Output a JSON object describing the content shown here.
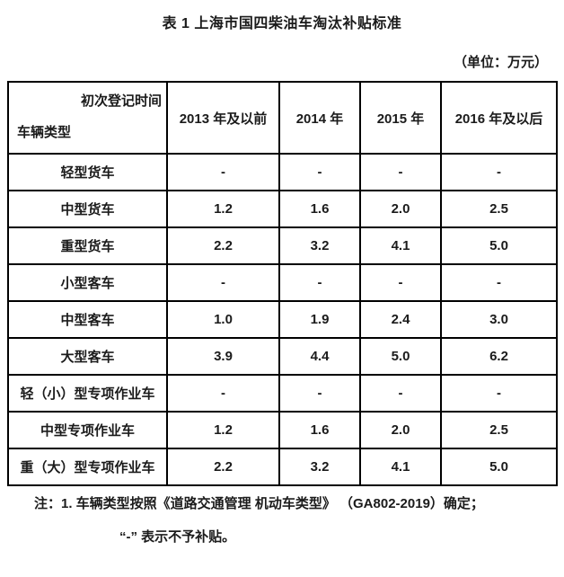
{
  "title": "表 1 上海市国四柴油车淘汰补贴标准",
  "unit_label": "（单位：万元）",
  "table": {
    "corner": {
      "top_right": "初次登记时间",
      "bottom_left": "车辆类型"
    },
    "columns": [
      "2013 年及以前",
      "2014 年",
      "2015 年",
      "2016 年及以后"
    ],
    "rows": [
      {
        "label": "轻型货车",
        "values": [
          "-",
          "-",
          "-",
          "-"
        ]
      },
      {
        "label": "中型货车",
        "values": [
          "1.2",
          "1.6",
          "2.0",
          "2.5"
        ]
      },
      {
        "label": "重型货车",
        "values": [
          "2.2",
          "3.2",
          "4.1",
          "5.0"
        ]
      },
      {
        "label": "小型客车",
        "values": [
          "-",
          "-",
          "-",
          "-"
        ]
      },
      {
        "label": "中型客车",
        "values": [
          "1.0",
          "1.9",
          "2.4",
          "3.0"
        ]
      },
      {
        "label": "大型客车",
        "values": [
          "3.9",
          "4.4",
          "5.0",
          "6.2"
        ]
      },
      {
        "label": "轻（小）型专项作业车",
        "values": [
          "-",
          "-",
          "-",
          "-"
        ]
      },
      {
        "label": "中型专项作业车",
        "values": [
          "1.2",
          "1.6",
          "2.0",
          "2.5"
        ]
      },
      {
        "label": "重（大）型专项作业车",
        "values": [
          "2.2",
          "3.2",
          "4.1",
          "5.0"
        ]
      }
    ]
  },
  "notes": [
    "注：1. 车辆类型按照《道路交通管理 机动车类型》 （GA802-2019）确定；",
    "“-” 表示不予补贴。"
  ],
  "colors": {
    "text": "#1b1b1b",
    "border": "#000000",
    "background": "#ffffff"
  }
}
